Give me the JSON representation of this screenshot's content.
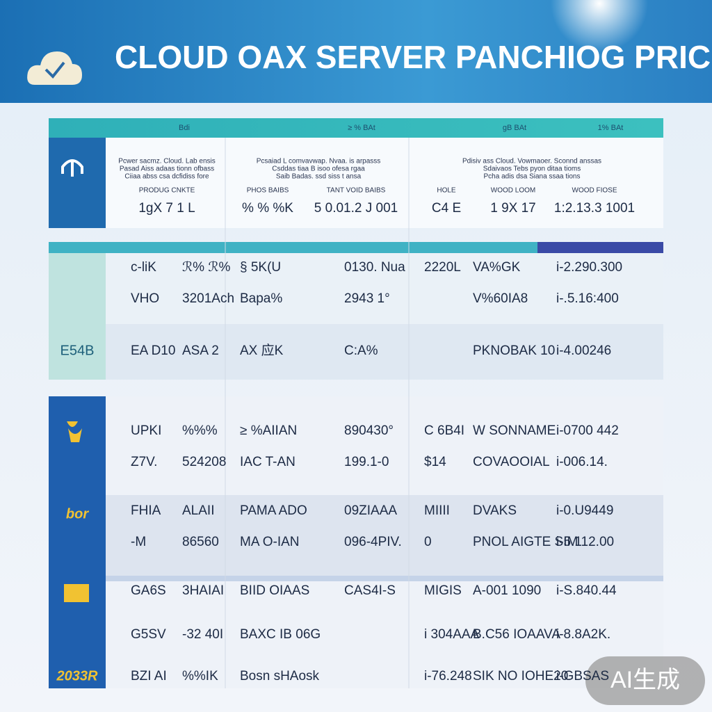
{
  "header": {
    "title": "CLOUD OAX SERVER PANCHIOG PRICING"
  },
  "top_table": {
    "columns": [
      "Bdi",
      "≥ % BAt",
      "gB BAt",
      "1% BAt"
    ],
    "descriptions": [
      [
        "Pcwer sacmz. Cloud. Lab ensis",
        "Pasad Aiss adaas tionn ofbass",
        "Ciiaa abss csa dcfidiss fore"
      ],
      [
        "Pcsaiad L comvavwap. Nvaa. is arpasss",
        "Csddas tiaa B isoo  ofesa rgaa",
        "Saib Badas. ssd siss t ansa"
      ],
      [
        "Pdisiv ass Cloud. Vowmaoer. Sconnd anssas",
        "Sdaivaos Tebs pyon ditaa tioms",
        "Pcha adis dsa Siana ssaa tions"
      ]
    ],
    "labels": [
      "PRODUG CNKTE",
      "PHOS BAIBS",
      "TANT VOID BAIBS",
      "HOLE",
      "WOOD LOOM",
      "WOOD FIOSE"
    ],
    "prices": [
      "1gX 7 1 L",
      "% % %K",
      "5 0.01.2 J 001",
      "C4 E",
      "1 9X 17",
      "1:2.13.3 1001"
    ]
  },
  "mid_table": {
    "side_label": "E54B",
    "rows": [
      [
        "c-liK",
        "ℛ% ℛ%",
        "§ 5K(U",
        "0130. Nua",
        "2220L",
        "VA%GK",
        "i-2.290.300"
      ],
      [
        "VHO",
        "3201Ach",
        "Bapa%",
        "2943 1°",
        "",
        "V%60IA8",
        "i-.5.16:400"
      ],
      [
        "EA D10",
        "ASA 2",
        "AX 应K",
        "C:A%",
        "",
        "PKNOBAK 10",
        "i-4.00246"
      ]
    ]
  },
  "bottom_table": {
    "side_labels": [
      "bor",
      "2033R"
    ],
    "rows": [
      [
        "UPKI",
        "%%%",
        "≥ %AIIAN",
        "890430°",
        "C 6B4I",
        "W SONNAME",
        "i-0700 442"
      ],
      [
        "Z7V.",
        "524208",
        "IAC T-AN",
        "199.1-0",
        "$14",
        "COVAOOIAL",
        "i-006.14."
      ],
      [
        "FHIA",
        "ALAII",
        "PAMA ADO",
        "09ZIAAA",
        "MIIII",
        "DVAKS",
        "i-0.U9449"
      ],
      [
        "-M",
        "86560",
        "MA O-IAN",
        "096-4PIV.",
        "0",
        "PNOL AIGTE SIM",
        "i-5.112.00"
      ],
      [
        "GA6S",
        "3HAIAI",
        "BIID OIAAS",
        "CAS4I-S",
        "MIGIS",
        "A-001 1090",
        "i-S.840.44"
      ],
      [
        "G5SV",
        "-32 40I",
        "BAXC IB 06G",
        "",
        "i 304AAA",
        "B.C56 IOAAVA",
        "i-8.8A2K."
      ],
      [
        "BZI AI",
        "%%IK",
        "Bosn sHAosk",
        "",
        "i-76.248",
        "SIK NO IOHE20",
        "i-GBSAS"
      ]
    ]
  },
  "watermark": "AI生成"
}
